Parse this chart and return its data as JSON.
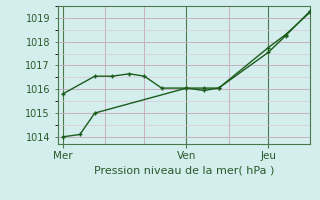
{
  "title": "",
  "xlabel": "Pression niveau de la mer( hPa )",
  "bg_color": "#d4eeee",
  "grid_color_major": "#c8b0c0",
  "grid_color_minor": "#dcc8d8",
  "line_color": "#1a5c1a",
  "spine_color": "#4a7a4a",
  "tick_color": "#4a7a4a",
  "label_color": "#2a5a2a",
  "ylim": [
    1013.7,
    1019.5
  ],
  "yticks": [
    1014,
    1015,
    1016,
    1017,
    1018,
    1019
  ],
  "day_labels": [
    "Mer",
    "Ven",
    "Jeu"
  ],
  "day_positions": [
    0.0,
    0.5,
    0.83
  ],
  "vline_positions": [
    0.0,
    0.5,
    0.83
  ],
  "xlim": [
    -0.02,
    1.0
  ],
  "line1_x": [
    0.0,
    0.13,
    0.2,
    0.27,
    0.33,
    0.4,
    0.5,
    0.57,
    0.63,
    0.83,
    0.9,
    1.0
  ],
  "line1_y": [
    1015.8,
    1016.55,
    1016.55,
    1016.65,
    1016.55,
    1016.05,
    1016.05,
    1015.95,
    1016.05,
    1017.75,
    1018.3,
    1019.25
  ],
  "line2_x": [
    0.0,
    0.07,
    0.13,
    0.5,
    0.57,
    0.63,
    0.83,
    0.9,
    1.0
  ],
  "line2_y": [
    1014.0,
    1014.1,
    1015.0,
    1016.05,
    1016.05,
    1016.05,
    1017.55,
    1018.25,
    1019.3
  ]
}
